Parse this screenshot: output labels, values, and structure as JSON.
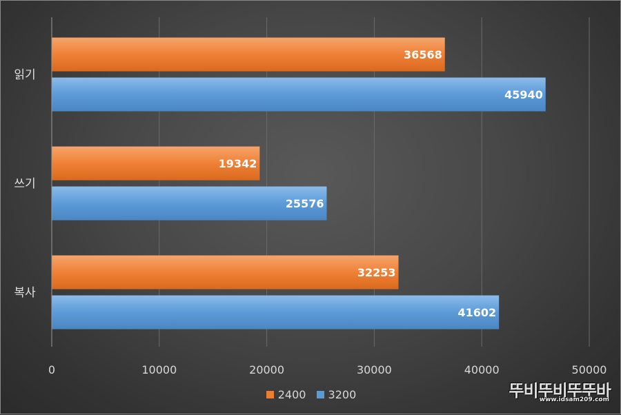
{
  "chart_data": {
    "type": "bar",
    "orientation": "horizontal",
    "categories": [
      "읽기",
      "쓰기",
      "복사"
    ],
    "series": [
      {
        "name": "2400",
        "values": [
          36568,
          19342,
          32253
        ],
        "color": "#ED7D31"
      },
      {
        "name": "3200",
        "values": [
          45940,
          25576,
          41602
        ],
        "color": "#5B9BD5"
      }
    ],
    "xlim": [
      0,
      50000
    ],
    "x_ticks": [
      "0",
      "10000",
      "20000",
      "30000",
      "40000",
      "50000"
    ],
    "grid": true,
    "legend_position": "bottom",
    "data_labels": true
  },
  "watermark": {
    "text": "뚜비뚜비뚜뚜바",
    "url": "www.idsam209.com"
  }
}
